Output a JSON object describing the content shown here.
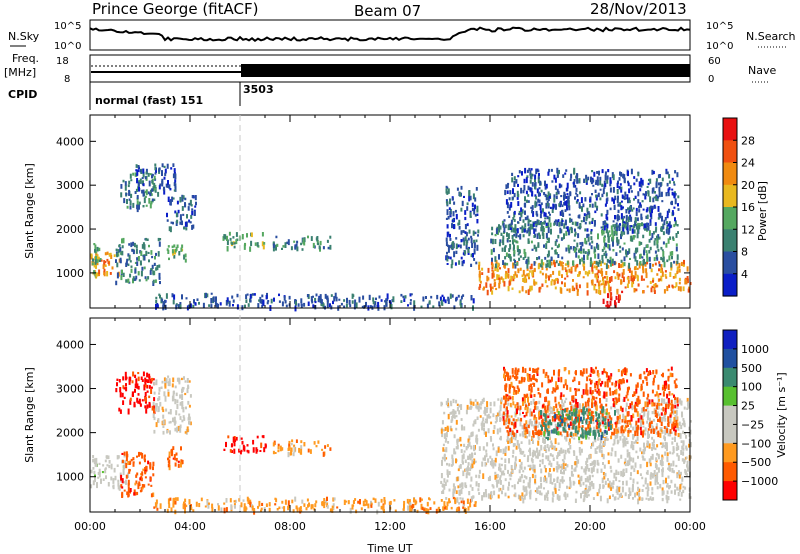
{
  "header": {
    "station": "Prince George (fitACF)",
    "beam": "Beam 07",
    "date": "28/Nov/2013"
  },
  "ancillary": {
    "nsky_label": "N.Sky",
    "nsky_ticks": [
      "10^5",
      "10^0"
    ],
    "nsearch_label": "N.Search",
    "nsearch_ticks": [
      "10^5",
      "10^0"
    ],
    "freq_label": "Freq.",
    "freq_unit": "[MHz]",
    "freq_ticks": [
      "18",
      "8"
    ],
    "nave_label": "Nave",
    "nave_ticks": [
      "60",
      "0"
    ],
    "cpid_label": "CPID",
    "cpid_segments": [
      {
        "name": "normal (fast) 151",
        "start_hr": 0,
        "end_hr": 6
      },
      {
        "name": "3503",
        "start_hr": 6,
        "end_hr": 24
      }
    ]
  },
  "colors": {
    "power": [
      "#0a1ec8",
      "#2a4ea0",
      "#3a8070",
      "#55a860",
      "#e8b820",
      "#f08a10",
      "#f05010",
      "#e81010"
    ],
    "velocity": [
      "#ff0000",
      "#ff5a00",
      "#ff9a20",
      "#c8c8c0",
      "#c8c8c0",
      "#58c030",
      "#3a8a70",
      "#2050a0",
      "#1020c0"
    ]
  },
  "chart_data": [
    {
      "type": "heatmap",
      "name": "power",
      "xlabel": "",
      "ylabel": "Slant Range [km]",
      "xlim": [
        0,
        24
      ],
      "ylim": [
        200,
        4600
      ],
      "yticks": [
        "1000",
        "2000",
        "3000",
        "4000"
      ],
      "colorbar": {
        "label": "Power [dB]",
        "ticks": [
          "4",
          "8",
          "12",
          "16",
          "20",
          "24",
          "28"
        ],
        "range": [
          0,
          32
        ]
      },
      "regions": [
        {
          "t0": 0.0,
          "t1": 1.2,
          "r0": 950,
          "r1": 1500,
          "level": 20
        },
        {
          "t0": 0.0,
          "t1": 0.4,
          "r0": 1000,
          "r1": 1700,
          "level": 12
        },
        {
          "t0": 1.0,
          "t1": 2.8,
          "r0": 800,
          "r1": 1800,
          "level": 8
        },
        {
          "t0": 1.2,
          "t1": 2.6,
          "r0": 2500,
          "r1": 3300,
          "level": 10
        },
        {
          "t0": 1.8,
          "t1": 3.4,
          "r0": 2800,
          "r1": 3500,
          "level": 6
        },
        {
          "t0": 3.0,
          "t1": 3.8,
          "r0": 1300,
          "r1": 1700,
          "level": 12
        },
        {
          "t0": 3.0,
          "t1": 4.2,
          "r0": 2000,
          "r1": 2800,
          "level": 6
        },
        {
          "t0": 5.3,
          "t1": 7.0,
          "r0": 1600,
          "r1": 1950,
          "level": 14
        },
        {
          "t0": 7.3,
          "t1": 9.6,
          "r0": 1550,
          "r1": 1850,
          "level": 10
        },
        {
          "t0": 2.5,
          "t1": 15.5,
          "r0": 250,
          "r1": 550,
          "level": 6
        },
        {
          "t0": 14.2,
          "t1": 15.5,
          "r0": 1200,
          "r1": 3000,
          "level": 6
        },
        {
          "t0": 15.5,
          "t1": 24.0,
          "r0": 600,
          "r1": 1300,
          "level": 22
        },
        {
          "t0": 16.0,
          "t1": 23.5,
          "r0": 1200,
          "r1": 2200,
          "level": 8
        },
        {
          "t0": 16.5,
          "t1": 23.5,
          "r0": 2000,
          "r1": 3400,
          "level": 4
        },
        {
          "t0": 20.5,
          "t1": 21.3,
          "r0": 250,
          "r1": 600,
          "level": 28
        }
      ]
    },
    {
      "type": "heatmap",
      "name": "velocity",
      "xlabel": "Time UT",
      "ylabel": "Slant Range [km]",
      "xlim": [
        0,
        24
      ],
      "ylim": [
        200,
        4600
      ],
      "xticks": [
        "00:00",
        "04:00",
        "08:00",
        "12:00",
        "16:00",
        "20:00",
        "00:00"
      ],
      "yticks": [
        "1000",
        "2000",
        "3000",
        "4000"
      ],
      "colorbar": {
        "label": "Velocity [m s⁻¹]",
        "ticks": [
          "1000",
          "500",
          "100",
          "25",
          "−25",
          "−100",
          "−500",
          "−1000"
        ]
      },
      "regions": [
        {
          "t0": 0.0,
          "t1": 1.5,
          "r0": 800,
          "r1": 1500,
          "level": 4
        },
        {
          "t0": 1.2,
          "t1": 2.5,
          "r0": 600,
          "r1": 1600,
          "level": 1
        },
        {
          "t0": 1.0,
          "t1": 2.6,
          "r0": 2500,
          "r1": 3400,
          "level": 0
        },
        {
          "t0": 2.5,
          "t1": 4.0,
          "r0": 2000,
          "r1": 3300,
          "level": 3
        },
        {
          "t0": 3.0,
          "t1": 3.8,
          "r0": 1200,
          "r1": 1700,
          "level": 1
        },
        {
          "t0": 5.3,
          "t1": 7.0,
          "r0": 1600,
          "r1": 1950,
          "level": 0
        },
        {
          "t0": 7.3,
          "t1": 9.6,
          "r0": 1550,
          "r1": 1850,
          "level": 2
        },
        {
          "t0": 2.5,
          "t1": 15.5,
          "r0": 250,
          "r1": 550,
          "level": 2
        },
        {
          "t0": 14.0,
          "t1": 24.0,
          "r0": 500,
          "r1": 2800,
          "level": 3
        },
        {
          "t0": 16.5,
          "t1": 23.5,
          "r0": 2000,
          "r1": 3500,
          "level": 1
        },
        {
          "t0": 18.0,
          "t1": 21.0,
          "r0": 1900,
          "r1": 2600,
          "level": 6
        }
      ]
    }
  ]
}
